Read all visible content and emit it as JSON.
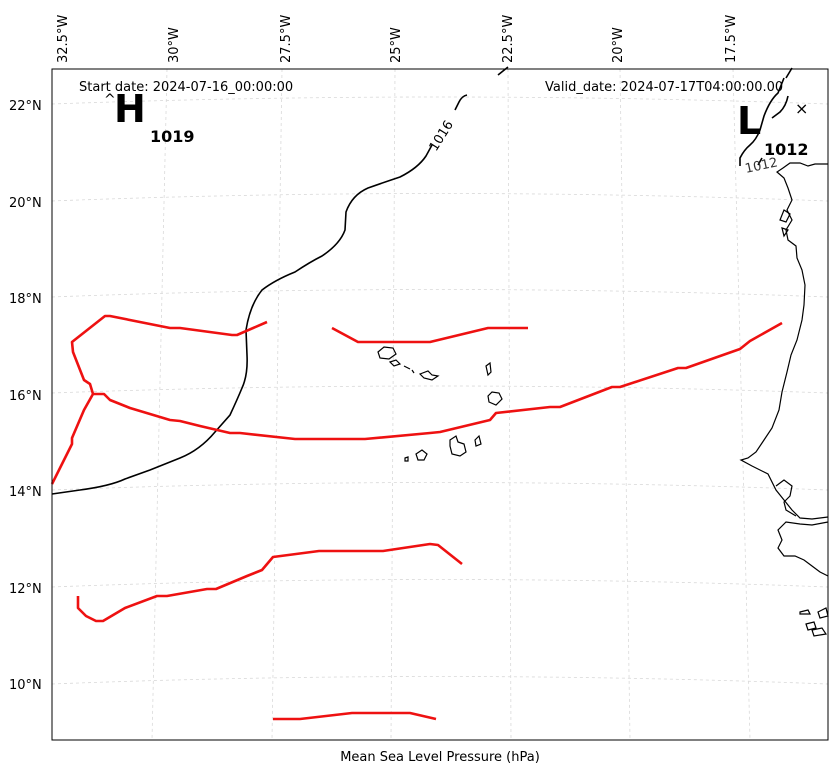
{
  "header": {
    "start_date": "Start date: 2024-07-16_00:00:00",
    "valid_date": "Valid_date: 2024-07-17T04:00:00.00"
  },
  "footer": {
    "xlabel": "Mean Sea Level Pressure (hPa)"
  },
  "longitude_ticks": [
    "32.5°W",
    "30°W",
    "27.5°W",
    "25°W",
    "22.5°W",
    "20°W",
    "17.5°W"
  ],
  "latitude_ticks": [
    "22°N",
    "20°N",
    "18°N",
    "16°N",
    "14°N",
    "12°N",
    "10°N"
  ],
  "pressure_centers": [
    {
      "type": "H",
      "value": "1019"
    },
    {
      "type": "L",
      "value": "1012"
    }
  ],
  "isobar_labels": [
    "1016",
    "1012"
  ],
  "marker": "×",
  "colors": {
    "isobar": "#000000",
    "trough": "#ee1111",
    "grid": "#cccccc",
    "coast": "#000000"
  },
  "grid": "dashed"
}
